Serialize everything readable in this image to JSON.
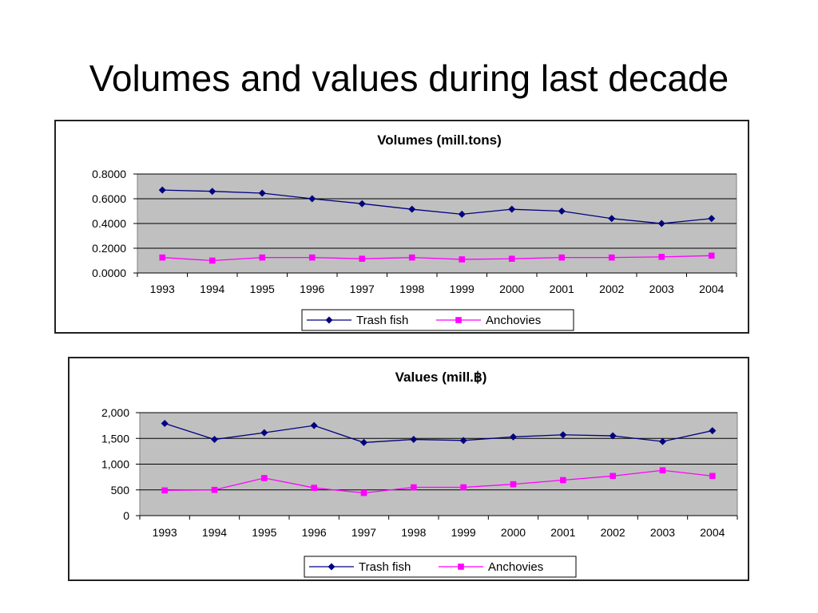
{
  "slide": {
    "title": "Volumes and values during last decade"
  },
  "chart_data": [
    {
      "type": "line",
      "title": "Volumes (mill.tons)",
      "xlabel": "",
      "ylabel": "",
      "categories": [
        "1993",
        "1994",
        "1995",
        "1996",
        "1997",
        "1998",
        "1999",
        "2000",
        "2001",
        "2002",
        "2003",
        "2004"
      ],
      "ylim": [
        0,
        0.8
      ],
      "yticks": [
        0,
        0.2,
        0.4,
        0.6,
        0.8
      ],
      "ytick_labels": [
        "0.0000",
        "0.2000",
        "0.4000",
        "0.6000",
        "0.8000"
      ],
      "grid": true,
      "plot_background": "#c0c0c0",
      "legend_position": "bottom",
      "series": [
        {
          "name": "Trash fish",
          "color": "#000080",
          "marker": "diamond",
          "values": [
            0.67,
            0.66,
            0.645,
            0.6,
            0.56,
            0.515,
            0.475,
            0.515,
            0.5,
            0.44,
            0.4,
            0.44
          ]
        },
        {
          "name": "Anchovies",
          "color": "#ff00ff",
          "marker": "square",
          "values": [
            0.125,
            0.1,
            0.125,
            0.125,
            0.115,
            0.125,
            0.11,
            0.115,
            0.125,
            0.125,
            0.13,
            0.14
          ]
        }
      ]
    },
    {
      "type": "line",
      "title": "Values (mill.฿)",
      "xlabel": "",
      "ylabel": "",
      "categories": [
        "1993",
        "1994",
        "1995",
        "1996",
        "1997",
        "1998",
        "1999",
        "2000",
        "2001",
        "2002",
        "2003",
        "2004"
      ],
      "ylim": [
        0,
        2000
      ],
      "yticks": [
        0,
        500,
        1000,
        1500,
        2000
      ],
      "ytick_labels": [
        "0",
        "500",
        "1,000",
        "1,500",
        "2,000"
      ],
      "grid": true,
      "plot_background": "#c0c0c0",
      "legend_position": "bottom",
      "series": [
        {
          "name": "Trash fish",
          "color": "#000080",
          "marker": "diamond",
          "values": [
            1790,
            1480,
            1610,
            1750,
            1420,
            1480,
            1460,
            1530,
            1570,
            1550,
            1440,
            1650
          ]
        },
        {
          "name": "Anchovies",
          "color": "#ff00ff",
          "marker": "square",
          "values": [
            490,
            500,
            730,
            540,
            440,
            550,
            550,
            610,
            690,
            770,
            880,
            770
          ]
        }
      ]
    }
  ]
}
